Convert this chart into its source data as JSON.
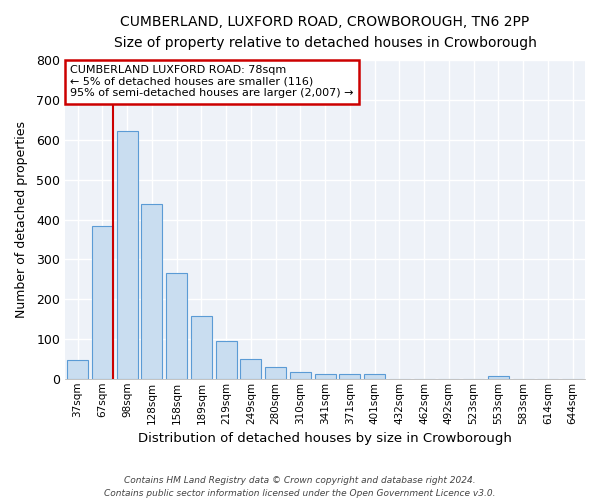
{
  "title": "CUMBERLAND, LUXFORD ROAD, CROWBOROUGH, TN6 2PP",
  "subtitle": "Size of property relative to detached houses in Crowborough",
  "xlabel": "Distribution of detached houses by size in Crowborough",
  "ylabel": "Number of detached properties",
  "bar_labels": [
    "37sqm",
    "67sqm",
    "98sqm",
    "128sqm",
    "158sqm",
    "189sqm",
    "219sqm",
    "249sqm",
    "280sqm",
    "310sqm",
    "341sqm",
    "371sqm",
    "401sqm",
    "432sqm",
    "462sqm",
    "492sqm",
    "523sqm",
    "553sqm",
    "583sqm",
    "614sqm",
    "644sqm"
  ],
  "bar_values": [
    48,
    383,
    623,
    440,
    265,
    157,
    95,
    50,
    30,
    17,
    11,
    11,
    12,
    0,
    0,
    0,
    0,
    7,
    0,
    0,
    0
  ],
  "bar_color": "#c9ddf0",
  "bar_edgecolor": "#5b9bd5",
  "ylim": [
    0,
    800
  ],
  "yticks": [
    0,
    100,
    200,
    300,
    400,
    500,
    600,
    700,
    800
  ],
  "annotation_title": "CUMBERLAND LUXFORD ROAD: 78sqm",
  "annotation_line1": "← 5% of detached houses are smaller (116)",
  "annotation_line2": "95% of semi-detached houses are larger (2,007) →",
  "annotation_box_color": "#ffffff",
  "annotation_box_edgecolor": "#cc0000",
  "reference_line_color": "#cc0000",
  "background_color": "#eef2f8",
  "footer1": "Contains HM Land Registry data © Crown copyright and database right 2024.",
  "footer2": "Contains public sector information licensed under the Open Government Licence v3.0."
}
